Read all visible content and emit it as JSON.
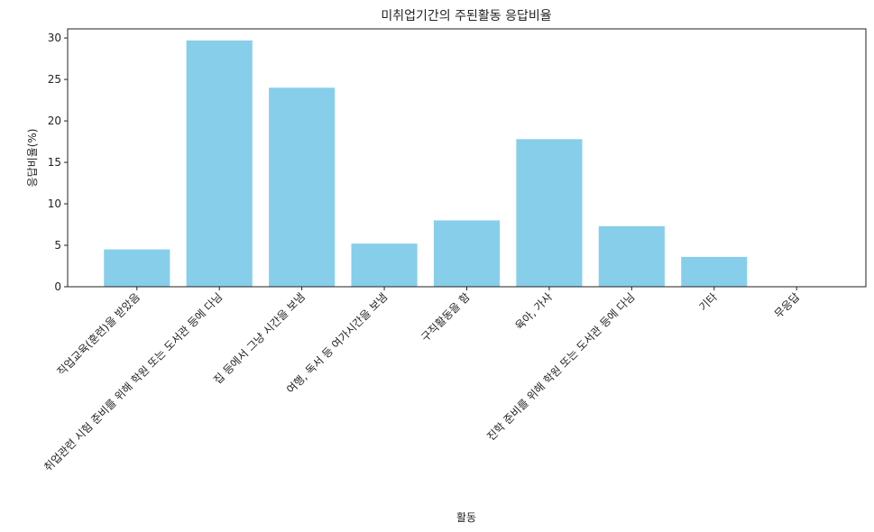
{
  "chart_data": {
    "type": "bar",
    "title": "미취업기간의 주된활동 응답비율",
    "x_label": "활동",
    "y_label": "응답비율(%)",
    "categories": [
      "직업교육(훈련)을 받았음",
      "취업관련 시험 준비를 위해 학원 또는 도서관 등에 다님",
      "집 등에서 그냥 시간을 보냄",
      "여행, 독서 등 여가시간을 보냄",
      "구직활동을 함",
      "육아, 가사",
      "진학 준비를 위해 학원 또는 도서관 등에 다님",
      "기타",
      "무응답"
    ],
    "values": [
      4.5,
      29.7,
      24.0,
      5.2,
      8.0,
      17.8,
      7.3,
      3.6,
      0
    ],
    "color": "#87ceeb",
    "ylim": [
      0,
      31.1
    ],
    "yticks": [
      0,
      5,
      10,
      15,
      20,
      25,
      30
    ],
    "grid": false
  }
}
